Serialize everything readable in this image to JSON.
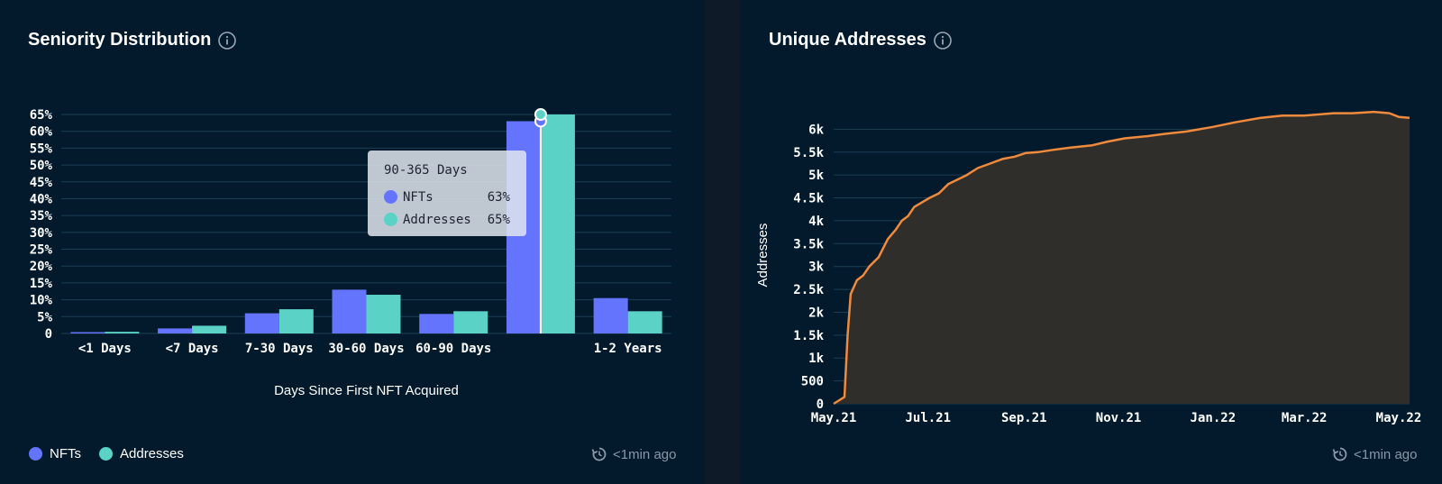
{
  "left_panel": {
    "title": "Seniority Distribution",
    "updated": "<1min ago",
    "legend": [
      {
        "label": "NFTs",
        "color": "#6474fd"
      },
      {
        "label": "Addresses",
        "color": "#5ad2c6"
      }
    ],
    "tooltip": {
      "title": "90-365 Days",
      "rows": [
        {
          "name": "NFTs",
          "value": "63%",
          "color": "#6474fd"
        },
        {
          "name": "Addresses",
          "value": "65%",
          "color": "#5ad2c6"
        }
      ]
    }
  },
  "right_panel": {
    "title": "Unique Addresses",
    "updated": "<1min ago"
  },
  "chart_data": [
    {
      "type": "bar",
      "title": "Seniority Distribution",
      "xlabel": "Days Since First NFT Acquired",
      "ylabel": "",
      "categories": [
        "<1 Days",
        "<7 Days",
        "7-30 Days",
        "30-60 Days",
        "60-90 Days",
        "90-365 Days",
        "1-2 Years"
      ],
      "category_tick_labels": [
        "<1 Days",
        "<7 Days",
        "7-30 Days",
        "30-60 Days",
        "60-90 Days",
        "",
        "1-2 Years"
      ],
      "series": [
        {
          "name": "NFTs",
          "color": "#6474fd",
          "values": [
            0.4,
            1.5,
            6,
            13,
            5.8,
            63,
            10.5
          ]
        },
        {
          "name": "Addresses",
          "color": "#5ad2c6",
          "values": [
            0.5,
            2.3,
            7.2,
            11.5,
            6.6,
            65,
            6.6
          ]
        }
      ],
      "ylim": [
        0,
        65
      ],
      "yticks": [
        0,
        5,
        10,
        15,
        20,
        25,
        30,
        35,
        40,
        45,
        50,
        55,
        60,
        65
      ],
      "ytick_labels": [
        "0",
        "5%",
        "10%",
        "15%",
        "20%",
        "25%",
        "30%",
        "35%",
        "40%",
        "45%",
        "50%",
        "55%",
        "60%",
        "65%"
      ],
      "grid": true,
      "legend": "bottom-left"
    },
    {
      "type": "area",
      "title": "Unique Addresses",
      "xlabel": "",
      "ylabel": "Addresses",
      "x": [
        "2021-05-01",
        "2021-05-08",
        "2021-05-10",
        "2021-05-12",
        "2021-05-16",
        "2021-05-20",
        "2021-05-24",
        "2021-05-30",
        "2021-06-05",
        "2021-06-10",
        "2021-06-14",
        "2021-06-18",
        "2021-06-22",
        "2021-06-27",
        "2021-07-02",
        "2021-07-08",
        "2021-07-14",
        "2021-07-20",
        "2021-07-26",
        "2021-08-02",
        "2021-08-10",
        "2021-08-18",
        "2021-08-26",
        "2021-09-02",
        "2021-09-10",
        "2021-09-20",
        "2021-10-01",
        "2021-10-15",
        "2021-10-25",
        "2021-11-05",
        "2021-11-20",
        "2021-12-01",
        "2021-12-15",
        "2022-01-01",
        "2022-01-15",
        "2022-02-01",
        "2022-02-15",
        "2022-03-01",
        "2022-03-20",
        "2022-04-01",
        "2022-04-15",
        "2022-04-25",
        "2022-05-01",
        "2022-05-08"
      ],
      "y": [
        0,
        150,
        1500,
        2400,
        2700,
        2800,
        3000,
        3200,
        3600,
        3800,
        4000,
        4100,
        4300,
        4400,
        4500,
        4600,
        4800,
        4900,
        5000,
        5150,
        5250,
        5350,
        5400,
        5480,
        5500,
        5550,
        5600,
        5650,
        5730,
        5800,
        5850,
        5900,
        5950,
        6050,
        6150,
        6250,
        6300,
        6300,
        6350,
        6350,
        6380,
        6350,
        6270,
        6250
      ],
      "xticks": [
        "2021-05-01",
        "2021-07-01",
        "2021-09-01",
        "2021-11-01",
        "2022-01-01",
        "2022-03-01",
        "2022-05-01"
      ],
      "xtick_labels": [
        "May.21",
        "Jul.21",
        "Sep.21",
        "Nov.21",
        "Jan.22",
        "Mar.22",
        "May.22"
      ],
      "ylim": [
        0,
        6500
      ],
      "yticks": [
        0,
        500,
        1000,
        1500,
        2000,
        2500,
        3000,
        3500,
        4000,
        4500,
        5000,
        5500,
        6000
      ],
      "ytick_labels": [
        "0",
        "500",
        "1k",
        "1.5k",
        "2k",
        "2.5k",
        "3k",
        "3.5k",
        "4k",
        "4.5k",
        "5k",
        "5.5k",
        "6k"
      ],
      "line_color": "#f08a3c",
      "fill_color": "#302e2b",
      "grid": true
    }
  ]
}
